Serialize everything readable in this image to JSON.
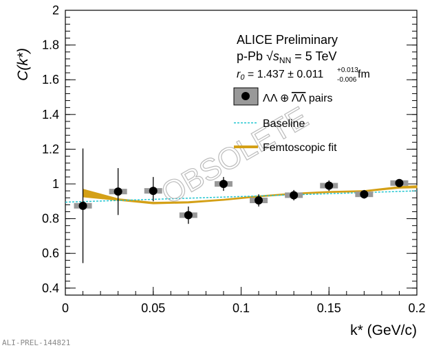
{
  "chart_data": {
    "type": "scatter",
    "xlabel": "k* (GeV/c)",
    "ylabel": "C(k*)",
    "xlim": [
      0,
      0.2
    ],
    "ylim": [
      0.35,
      2
    ],
    "xticks": [
      "0",
      "0.05",
      "0.1",
      "0.15",
      "0.2"
    ],
    "yticks": [
      "0.4",
      "0.6",
      "0.8",
      "1",
      "1.2",
      "1.4",
      "1.6",
      "1.8",
      "2"
    ],
    "legend": {
      "line1": "ALICE Preliminary",
      "line2_pre": "p-Pb ",
      "line2_s": "s",
      "line2_sub": "NN",
      "line2_post": " = 5 TeV",
      "r0_label": "r",
      "r0_sub": "0",
      "r0_value": " = 1.437 ± 0.011 ",
      "r0_sys_up": "+0.013",
      "r0_sys_down": "-0.006",
      "r0_unit": " fm",
      "data_label_a": "ΛΛ ⊕ ",
      "data_label_b": "ΛΛ",
      "data_label_c": " pairs",
      "baseline_label": "Baseline",
      "fit_label": "Femtoscopic fit",
      "placement": "top-right"
    },
    "series": [
      {
        "name": "ΛΛ ⊕ ΛΛ pairs",
        "x": [
          0.01,
          0.03,
          0.05,
          0.07,
          0.09,
          0.11,
          0.13,
          0.15,
          0.17,
          0.19
        ],
        "y": [
          0.874,
          0.956,
          0.96,
          0.82,
          1.0,
          0.905,
          0.935,
          0.99,
          0.94,
          1.005
        ],
        "err_low": [
          0.33,
          0.135,
          0.06,
          0.05,
          0.04,
          0.035,
          0.03,
          0.03,
          0.025,
          0.02
        ],
        "err_high": [
          0.33,
          0.135,
          0.08,
          0.05,
          0.04,
          0.035,
          0.03,
          0.03,
          0.025,
          0.02
        ],
        "color": "#000000",
        "syst_color": "#999999"
      },
      {
        "name": "Baseline",
        "x": [
          0,
          0.2
        ],
        "y": [
          0.895,
          0.96
        ],
        "color": "#22c5d0"
      },
      {
        "name": "Femtoscopic fit",
        "x": [
          0.01,
          0.03,
          0.05,
          0.07,
          0.09,
          0.11,
          0.13,
          0.15,
          0.17,
          0.19,
          0.2
        ],
        "y_low": [
          0.925,
          0.905,
          0.885,
          0.89,
          0.905,
          0.925,
          0.94,
          0.95,
          0.955,
          0.975,
          0.977
        ],
        "y_high": [
          0.97,
          0.915,
          0.895,
          0.898,
          0.912,
          0.932,
          0.947,
          0.957,
          0.962,
          0.985,
          0.99
        ],
        "color": "#d4a017"
      }
    ],
    "watermark": "OBSOLETE",
    "footer": "ALI-PREL-144821"
  }
}
